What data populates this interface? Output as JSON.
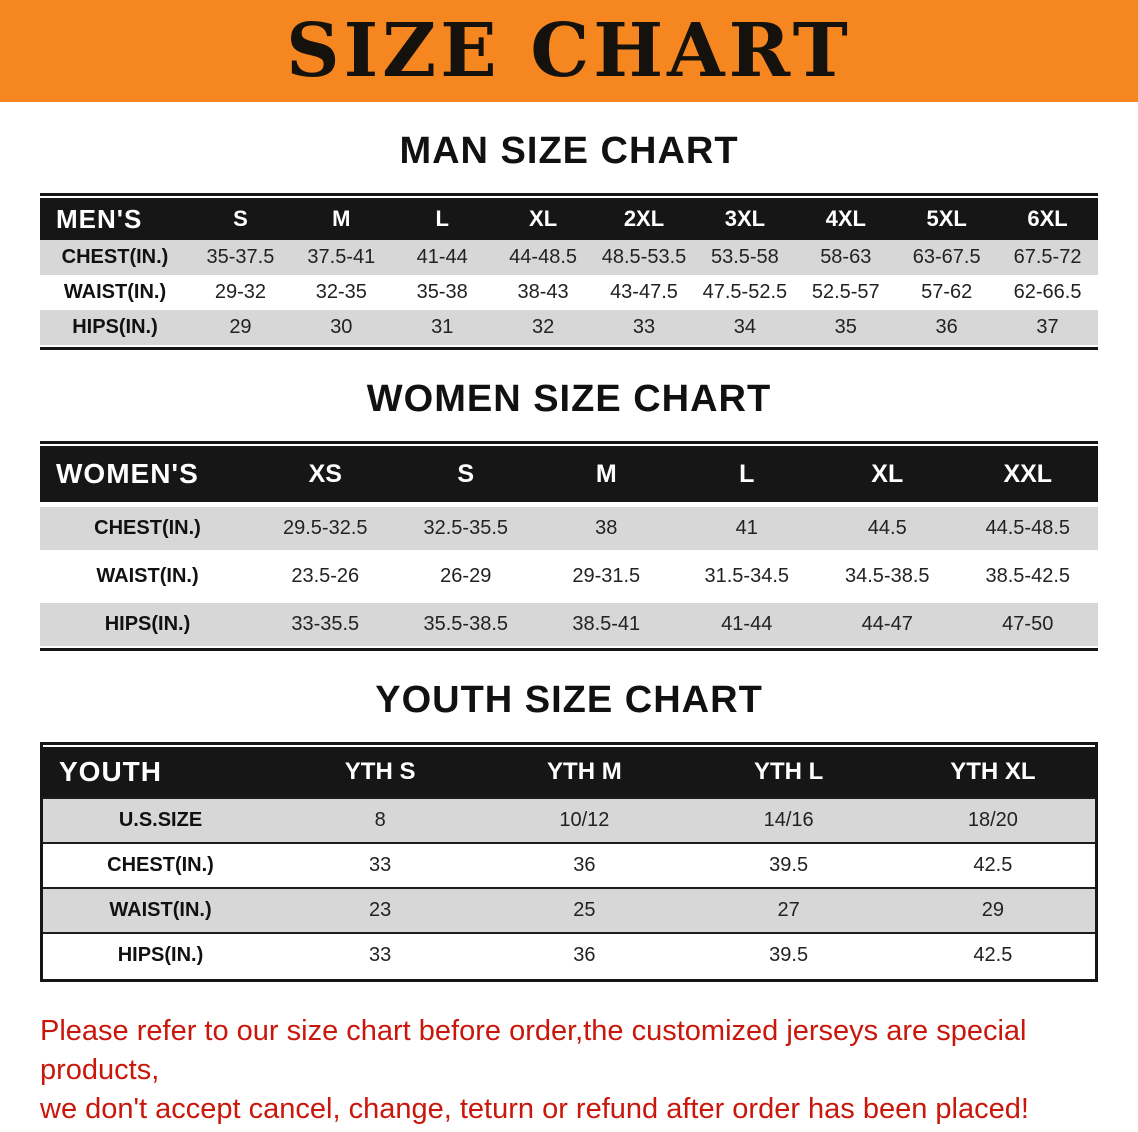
{
  "banner": {
    "title": "SIZE CHART",
    "bg_color": "#f6861f",
    "text_color": "#15120e"
  },
  "men": {
    "heading": "MAN SIZE CHART",
    "corner": "MEN'S",
    "sizes": [
      "S",
      "M",
      "L",
      "XL",
      "2XL",
      "3XL",
      "4XL",
      "5XL",
      "6XL"
    ],
    "rows": [
      {
        "label": "CHEST(IN.)",
        "values": [
          "35-37.5",
          "37.5-41",
          "41-44",
          "44-48.5",
          "48.5-53.5",
          "53.5-58",
          "58-63",
          "63-67.5",
          "67.5-72"
        ]
      },
      {
        "label": "WAIST(IN.)",
        "values": [
          "29-32",
          "32-35",
          "35-38",
          "38-43",
          "43-47.5",
          "47.5-52.5",
          "52.5-57",
          "57-62",
          "62-66.5"
        ]
      },
      {
        "label": "HIPS(IN.)",
        "values": [
          "29",
          "30",
          "31",
          "32",
          "33",
          "34",
          "35",
          "36",
          "37"
        ]
      }
    ]
  },
  "women": {
    "heading": "WOMEN SIZE CHART",
    "corner": "WOMEN'S",
    "sizes": [
      "XS",
      "S",
      "M",
      "L",
      "XL",
      "XXL"
    ],
    "rows": [
      {
        "label": "CHEST(IN.)",
        "values": [
          "29.5-32.5",
          "32.5-35.5",
          "38",
          "41",
          "44.5",
          "44.5-48.5"
        ]
      },
      {
        "label": "WAIST(IN.)",
        "values": [
          "23.5-26",
          "26-29",
          "29-31.5",
          "31.5-34.5",
          "34.5-38.5",
          "38.5-42.5"
        ]
      },
      {
        "label": "HIPS(IN.)",
        "values": [
          "33-35.5",
          "35.5-38.5",
          "38.5-41",
          "41-44",
          "44-47",
          "47-50"
        ]
      }
    ]
  },
  "youth": {
    "heading": "YOUTH SIZE CHART",
    "corner": "YOUTH",
    "sizes": [
      "YTH S",
      "YTH M",
      "YTH L",
      "YTH XL"
    ],
    "rows": [
      {
        "label": "U.S.SIZE",
        "values": [
          "8",
          "10/12",
          "14/16",
          "18/20"
        ]
      },
      {
        "label": "CHEST(IN.)",
        "values": [
          "33",
          "36",
          "39.5",
          "42.5"
        ]
      },
      {
        "label": "WAIST(IN.)",
        "values": [
          "23",
          "25",
          "27",
          "29"
        ]
      },
      {
        "label": "HIPS(IN.)",
        "values": [
          "33",
          "36",
          "39.5",
          "42.5"
        ]
      }
    ]
  },
  "footer": {
    "line1": "Please refer to our size chart before order,the customized jerseys are special products,",
    "line2": "we don't accept cancel, change, teturn or refund after order has been placed!",
    "text_color": "#c9170b"
  }
}
